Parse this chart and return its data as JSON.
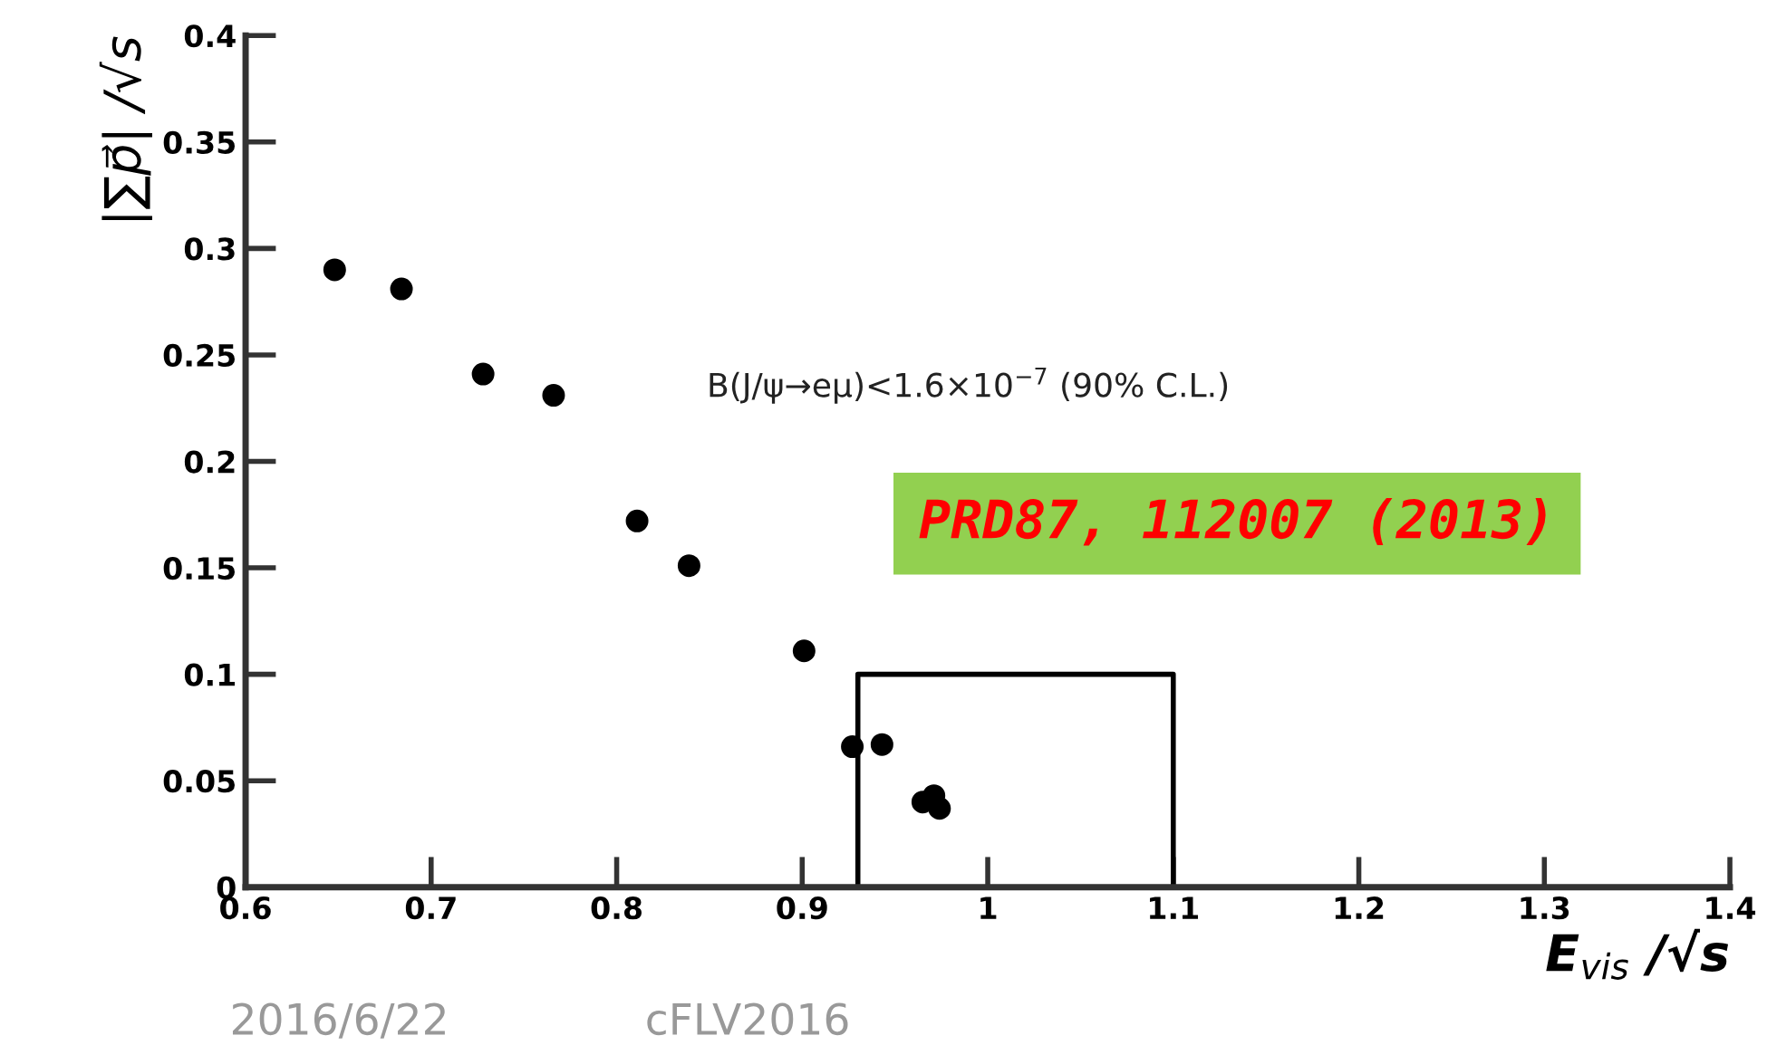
{
  "chart_data": {
    "type": "scatter",
    "xlabel": "E$_{vis}$ /√s",
    "ylabel": "|∑p⃗| /√s",
    "xlim": [
      0.6,
      1.4
    ],
    "xticks": [
      0.6,
      0.7,
      0.8,
      0.9,
      1,
      1.1,
      1.2,
      1.3,
      1.4
    ],
    "ylim": [
      0,
      0.4
    ],
    "yticks": [
      0,
      0.05,
      0.1,
      0.15,
      0.2,
      0.25,
      0.3,
      0.35,
      0.4
    ],
    "grid": false,
    "series": [
      {
        "color": "#000000",
        "marker": "circle",
        "x": [
          0.648,
          0.684,
          0.728,
          0.766,
          0.811,
          0.839,
          0.901,
          0.927,
          0.943,
          0.965,
          0.971,
          0.974
        ],
        "values": [
          0.29,
          0.281,
          0.241,
          0.231,
          0.172,
          0.151,
          0.111,
          0.066,
          0.067,
          0.04,
          0.043,
          0.037
        ]
      },
      {
        "type": "line",
        "marker": "none",
        "color": "#000000",
        "x": [
          0.93,
          0.93,
          1.1,
          1.1
        ],
        "values": [
          0,
          0.1,
          0.1,
          0
        ]
      }
    ],
    "annotations": [
      "B(J/ψ→eμ)<1.6×10$^{−7}$ (90% C.L.)",
      "PRD87, 112007 (2013)",
      "2016/6/22",
      "cFLV2016"
    ]
  }
}
